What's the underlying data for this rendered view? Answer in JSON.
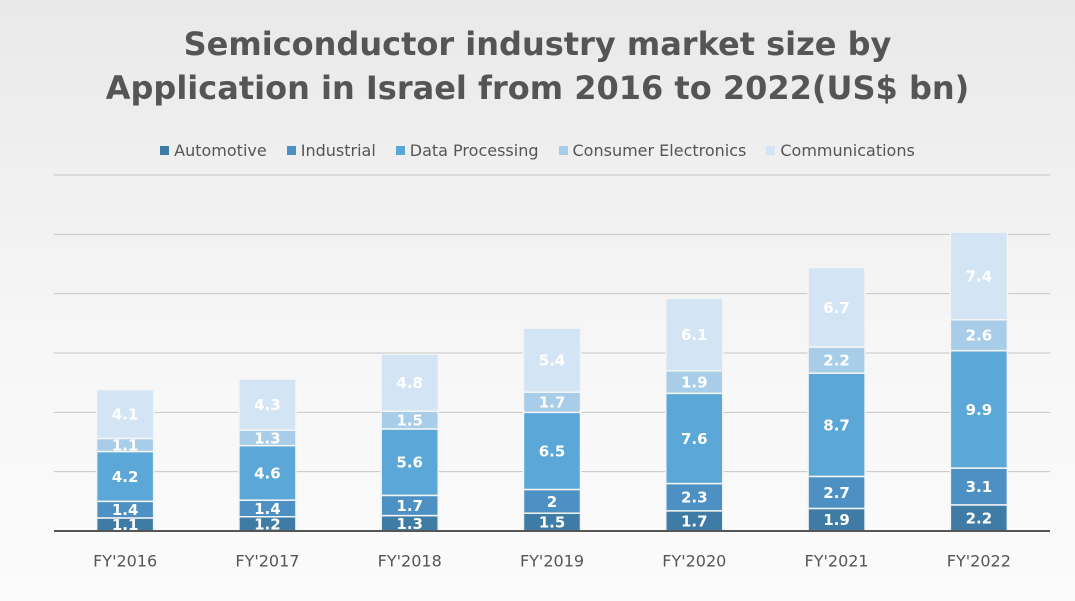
{
  "chart_data": {
    "type": "stacked_bar",
    "title": [
      "Semiconductor industry market size by",
      "Application in Israel from 2016 to 2022(US$ bn)"
    ],
    "categories": [
      "FY'2016",
      "FY'2017",
      "FY'2018",
      "FY'2019",
      "FY'2020",
      "FY'2021",
      "FY'2022"
    ],
    "series": [
      {
        "name": "Automotive",
        "color": "#3e7ca6",
        "values": [
          1.1,
          1.2,
          1.3,
          1.5,
          1.7,
          1.9,
          2.2
        ]
      },
      {
        "name": "Industrial",
        "color": "#4d91c4",
        "values": [
          1.4,
          1.4,
          1.7,
          2,
          2.3,
          2.7,
          3.1
        ]
      },
      {
        "name": "Data Processing",
        "color": "#5ba7d8",
        "values": [
          4.2,
          4.6,
          5.6,
          6.5,
          7.6,
          8.7,
          9.9
        ]
      },
      {
        "name": "Consumer Electronics",
        "color": "#a8cde8",
        "values": [
          1.1,
          1.3,
          1.5,
          1.7,
          1.9,
          2.2,
          2.6
        ]
      },
      {
        "name": "Communications",
        "color": "#d3e5f4",
        "values": [
          4.1,
          4.3,
          4.8,
          5.4,
          6.1,
          6.7,
          7.4
        ]
      }
    ],
    "ylim": [
      0,
      30
    ],
    "yticks": [
      0,
      5,
      10,
      15,
      20,
      25,
      30
    ],
    "grid": true,
    "legend": "top"
  }
}
